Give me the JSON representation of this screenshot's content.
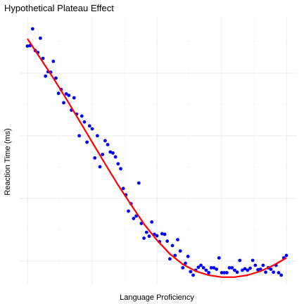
{
  "chart_data": {
    "type": "scatter",
    "title": "Hypothetical Plateau Effect",
    "xlabel": "Language Proficiency",
    "ylabel": "Reaction Time (ms)",
    "xlim": [
      -0.05,
      1.05
    ],
    "ylim": [
      0.0,
      1.0
    ],
    "grid": true,
    "point_color": "#0000ff",
    "fit_color": "#ff0000",
    "x": [
      0.0,
      0.01,
      0.02,
      0.03,
      0.04,
      0.05,
      0.06,
      0.07,
      0.08,
      0.09,
      0.1,
      0.11,
      0.12,
      0.13,
      0.14,
      0.15,
      0.16,
      0.17,
      0.18,
      0.19,
      0.2,
      0.21,
      0.22,
      0.23,
      0.24,
      0.25,
      0.26,
      0.27,
      0.28,
      0.29,
      0.3,
      0.31,
      0.32,
      0.33,
      0.34,
      0.35,
      0.36,
      0.37,
      0.38,
      0.39,
      0.4,
      0.41,
      0.42,
      0.43,
      0.44,
      0.45,
      0.46,
      0.47,
      0.48,
      0.49,
      0.5,
      0.51,
      0.52,
      0.53,
      0.54,
      0.55,
      0.56,
      0.57,
      0.58,
      0.59,
      0.6,
      0.61,
      0.62,
      0.63,
      0.64,
      0.65,
      0.66,
      0.67,
      0.68,
      0.69,
      0.7,
      0.71,
      0.72,
      0.73,
      0.74,
      0.75,
      0.76,
      0.77,
      0.78,
      0.79,
      0.8,
      0.81,
      0.82,
      0.83,
      0.84,
      0.85,
      0.86,
      0.87,
      0.88,
      0.89,
      0.9,
      0.91,
      0.92,
      0.93,
      0.94,
      0.95,
      0.96,
      0.97,
      0.98,
      0.99,
      1.0
    ],
    "y": [
      0.93,
      0.932,
      1.0,
      0.912,
      0.904,
      0.962,
      0.88,
      0.808,
      0.826,
      0.824,
      0.868,
      0.8,
      0.738,
      0.754,
      0.7,
      0.736,
      0.73,
      0.67,
      0.72,
      0.654,
      0.566,
      0.646,
      0.622,
      0.54,
      0.606,
      0.594,
      0.476,
      0.566,
      0.44,
      0.49,
      0.546,
      0.53,
      0.5,
      0.496,
      0.48,
      0.452,
      0.432,
      0.352,
      0.326,
      0.26,
      0.29,
      0.23,
      0.24,
      0.374,
      0.21,
      0.15,
      0.174,
      0.158,
      0.216,
      0.166,
      0.16,
      0.136,
      0.168,
      0.166,
      0.138,
      0.066,
      0.12,
      0.08,
      0.144,
      0.098,
      0.03,
      0.048,
      0.076,
      0.014,
      0.0,
      0.02,
      0.032,
      0.04,
      0.03,
      0.02,
      0.01,
      0.03,
      0.03,
      0.024,
      0.07,
      0.01,
      0.01,
      0.01,
      0.03,
      0.03,
      0.02,
      0.012,
      0.06,
      0.02,
      0.026,
      0.02,
      0.028,
      0.06,
      0.04,
      0.022,
      0.024,
      0.04,
      0.012,
      0.03,
      0.024,
      0.012,
      0.04,
      0.01,
      0.0,
      0.07,
      0.08
    ],
    "fit": {
      "x": [
        0.0,
        0.05,
        0.1,
        0.15,
        0.2,
        0.25,
        0.3,
        0.35,
        0.4,
        0.45,
        0.5,
        0.55,
        0.6,
        0.65,
        0.7,
        0.75,
        0.8,
        0.85,
        0.9,
        0.95,
        1.0
      ],
      "y": [
        0.96,
        0.88,
        0.8,
        0.716,
        0.628,
        0.54,
        0.452,
        0.366,
        0.286,
        0.208,
        0.142,
        0.086,
        0.044,
        0.016,
        0.0,
        -0.008,
        -0.008,
        0.0,
        0.016,
        0.04,
        0.07
      ]
    }
  }
}
